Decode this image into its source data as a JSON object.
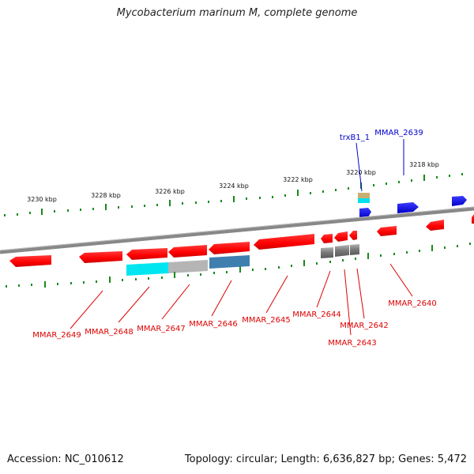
{
  "title": "Mycobacterium marinum M, complete genome",
  "footer": {
    "accession": "Accession: NC_010612",
    "topology": "Topology: circular; Length: 6,636,827 bp; Genes: 5,472"
  },
  "colors": {
    "reverse_strand_gene": "#ff0000",
    "forward_strand_gene": "#0000ee",
    "backbone": "#888888",
    "tick": "#1a8a1a"
  },
  "scale_labels": [
    "3230 kbp",
    "3228 kbp",
    "3226 kbp",
    "3224 kbp",
    "3222 kbp",
    "3220 kbp",
    "3218 kbp"
  ],
  "gene_labels": [
    "trxB1_1",
    "MMAR_2639",
    "MMAR_2649",
    "MMAR_2648",
    "MMAR_2647",
    "MMAR_2646",
    "MMAR_2645",
    "MMAR_2644",
    "MMAR_2642",
    "MMAR_2643",
    "MMAR_2640"
  ]
}
